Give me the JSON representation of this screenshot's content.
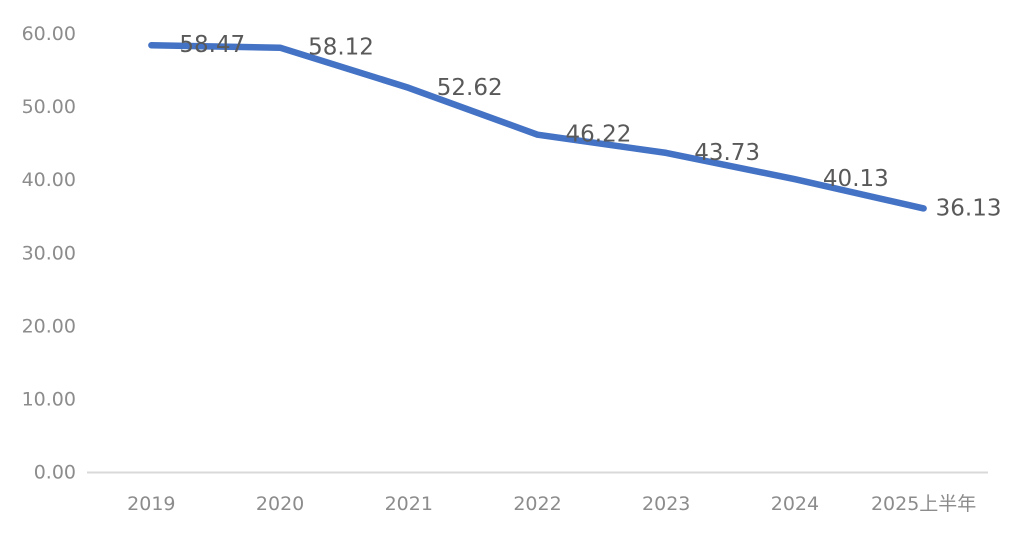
{
  "chart_data": {
    "type": "line",
    "title": "",
    "xlabel": "",
    "ylabel": "",
    "categories": [
      "2019",
      "2020",
      "2021",
      "2022",
      "2023",
      "2024",
      "2025上半年"
    ],
    "series": [
      {
        "name": "series-1",
        "values": [
          58.47,
          58.12,
          52.62,
          46.22,
          43.73,
          40.13,
          36.13
        ],
        "data_labels": [
          "58.47",
          "58.12",
          "52.62",
          "46.22",
          "43.73",
          "40.13",
          "36.13"
        ],
        "color": "#4472C4"
      }
    ],
    "ylim": [
      0,
      60
    ],
    "ytick_step": 10,
    "ytick_labels": [
      "0.00",
      "10.00",
      "20.00",
      "30.00",
      "40.00",
      "50.00",
      "60.00"
    ],
    "grid": false,
    "legend_position": "none",
    "data_label_position": "right",
    "colors": {
      "line": "#4472C4",
      "data_label": "#595959",
      "axis_tick_label": "#8c8c8c",
      "axis_line": "#d9d9d9",
      "background": "#ffffff"
    }
  }
}
